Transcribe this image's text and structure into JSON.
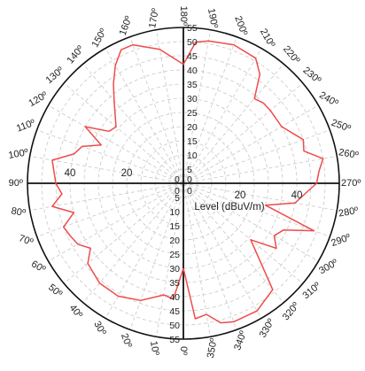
{
  "chart_data": {
    "type": "polar-line",
    "angular_unit": "deg",
    "angle_ticks": [
      {
        "deg": 0,
        "label": "0º"
      },
      {
        "deg": 10,
        "label": "10º"
      },
      {
        "deg": 20,
        "label": "20º"
      },
      {
        "deg": 30,
        "label": "30º"
      },
      {
        "deg": 40,
        "label": "40º"
      },
      {
        "deg": 50,
        "label": "50º"
      },
      {
        "deg": 60,
        "label": "60º"
      },
      {
        "deg": 70,
        "label": "70º"
      },
      {
        "deg": 80,
        "label": "80º"
      },
      {
        "deg": 90,
        "label": "90º"
      },
      {
        "deg": 100,
        "label": "100º"
      },
      {
        "deg": 110,
        "label": "110º"
      },
      {
        "deg": 120,
        "label": "120º"
      },
      {
        "deg": 130,
        "label": "130º"
      },
      {
        "deg": 140,
        "label": "140º"
      },
      {
        "deg": 150,
        "label": "150º"
      },
      {
        "deg": 160,
        "label": "160º"
      },
      {
        "deg": 170,
        "label": "170º"
      },
      {
        "deg": 180,
        "label": "180º"
      },
      {
        "deg": 190,
        "label": "190º"
      },
      {
        "deg": 200,
        "label": "200º"
      },
      {
        "deg": 210,
        "label": "210º"
      },
      {
        "deg": 220,
        "label": "220º"
      },
      {
        "deg": 230,
        "label": "230º"
      },
      {
        "deg": 240,
        "label": "240º"
      },
      {
        "deg": 250,
        "label": "250º"
      },
      {
        "deg": 260,
        "label": "260º"
      },
      {
        "deg": 270,
        "label": "270º"
      },
      {
        "deg": 280,
        "label": "280º"
      },
      {
        "deg": 290,
        "label": "290º"
      },
      {
        "deg": 300,
        "label": "300º"
      },
      {
        "deg": 310,
        "label": "310º"
      },
      {
        "deg": 320,
        "label": "320º"
      },
      {
        "deg": 330,
        "label": "330º"
      },
      {
        "deg": 340,
        "label": "340º"
      },
      {
        "deg": 350,
        "label": "350º"
      }
    ],
    "radial_range": [
      0,
      55
    ],
    "radial_step": 5,
    "vertical_axis_ticks": [
      "0",
      "5",
      "10",
      "15",
      "20",
      "25",
      "30",
      "35",
      "40",
      "45",
      "50",
      "55"
    ],
    "horizontal_axis_ticks": [
      "0",
      "20",
      "40"
    ],
    "radial_label": "Level (dBuV/m)",
    "grid": true,
    "series_color": "#ef4b4b",
    "points": [
      {
        "deg": 0,
        "r": 30
      },
      {
        "deg": 5,
        "r": 41
      },
      {
        "deg": 10,
        "r": 40
      },
      {
        "deg": 20,
        "r": 44
      },
      {
        "deg": 30,
        "r": 46
      },
      {
        "deg": 40,
        "r": 46
      },
      {
        "deg": 50,
        "r": 44
      },
      {
        "deg": 55,
        "r": 40
      },
      {
        "deg": 60,
        "r": 43
      },
      {
        "deg": 65,
        "r": 44
      },
      {
        "deg": 70,
        "r": 45
      },
      {
        "deg": 75,
        "r": 40
      },
      {
        "deg": 80,
        "r": 47
      },
      {
        "deg": 85,
        "r": 43
      },
      {
        "deg": 90,
        "r": 45
      },
      {
        "deg": 100,
        "r": 47
      },
      {
        "deg": 105,
        "r": 40
      },
      {
        "deg": 110,
        "r": 38
      },
      {
        "deg": 115,
        "r": 32
      },
      {
        "deg": 120,
        "r": 40
      },
      {
        "deg": 125,
        "r": 32
      },
      {
        "deg": 130,
        "r": 31
      },
      {
        "deg": 140,
        "r": 38
      },
      {
        "deg": 145,
        "r": 43
      },
      {
        "deg": 150,
        "r": 48
      },
      {
        "deg": 155,
        "r": 52
      },
      {
        "deg": 160,
        "r": 52
      },
      {
        "deg": 170,
        "r": 48
      },
      {
        "deg": 180,
        "r": 42
      },
      {
        "deg": 185,
        "r": 50
      },
      {
        "deg": 190,
        "r": 51
      },
      {
        "deg": 200,
        "r": 52
      },
      {
        "deg": 210,
        "r": 51
      },
      {
        "deg": 215,
        "r": 47
      },
      {
        "deg": 220,
        "r": 39
      },
      {
        "deg": 225,
        "r": 40
      },
      {
        "deg": 230,
        "r": 40
      },
      {
        "deg": 240,
        "r": 40
      },
      {
        "deg": 250,
        "r": 45
      },
      {
        "deg": 255,
        "r": 44
      },
      {
        "deg": 260,
        "r": 50
      },
      {
        "deg": 265,
        "r": 48
      },
      {
        "deg": 270,
        "r": 47
      },
      {
        "deg": 275,
        "r": 43
      },
      {
        "deg": 280,
        "r": 40
      },
      {
        "deg": 285,
        "r": 30
      },
      {
        "deg": 290,
        "r": 49
      },
      {
        "deg": 295,
        "r": 39
      },
      {
        "deg": 300,
        "r": 37
      },
      {
        "deg": 305,
        "r": 40
      },
      {
        "deg": 310,
        "r": 31
      },
      {
        "deg": 320,
        "r": 49
      },
      {
        "deg": 330,
        "r": 52
      },
      {
        "deg": 340,
        "r": 52
      },
      {
        "deg": 345,
        "r": 51
      },
      {
        "deg": 350,
        "r": 47
      },
      {
        "deg": 355,
        "r": 48
      },
      {
        "deg": 360,
        "r": 30
      }
    ]
  }
}
